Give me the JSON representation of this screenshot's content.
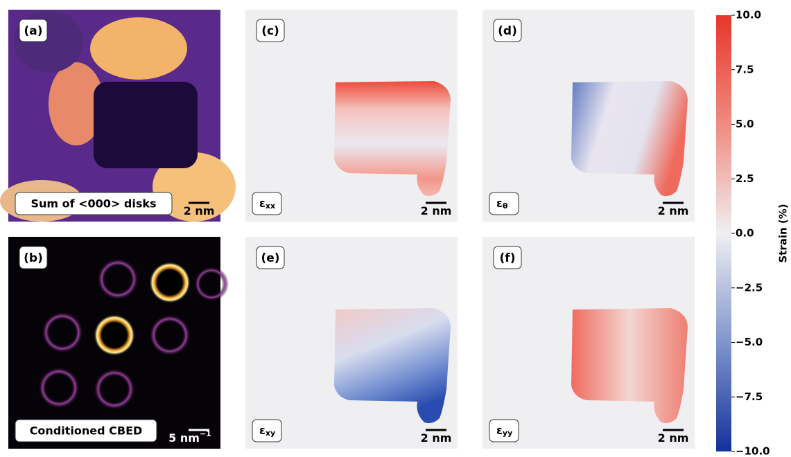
{
  "panels": [
    {
      "label": "(a)",
      "caption": "Sum of <000> disks",
      "scale_bar": "2 nm"
    },
    {
      "label": "(b)",
      "caption": "Conditioned CBED",
      "scale_bar": "5 nm",
      "scale_bar_power": "−1"
    },
    {
      "label": "(c)",
      "symbol": "ε",
      "subscript": "xx",
      "scale_bar": "2 nm"
    },
    {
      "label": "(d)",
      "symbol": "ε",
      "subscript": "θ",
      "scale_bar": "2 nm"
    },
    {
      "label": "(e)",
      "symbol": "ε",
      "subscript": "xy",
      "scale_bar": "2 nm"
    },
    {
      "label": "(f)",
      "symbol": "ε",
      "subscript": "yy",
      "scale_bar": "2 nm"
    }
  ],
  "colorbar": {
    "label": "Strain (%)",
    "lim": [
      -10,
      10
    ],
    "ticks": [
      {
        "value": 10,
        "label": "10.0"
      },
      {
        "value": 7.5,
        "label": "7.5"
      },
      {
        "value": 5,
        "label": "5.0"
      },
      {
        "value": 2.5,
        "label": "2.5"
      },
      {
        "value": 0,
        "label": "0.0"
      },
      {
        "value": -2.5,
        "label": "−2.5"
      },
      {
        "value": -5,
        "label": "−5.0"
      },
      {
        "value": -7.5,
        "label": "−7.5"
      },
      {
        "value": -10,
        "label": "−10.0"
      }
    ]
  }
}
